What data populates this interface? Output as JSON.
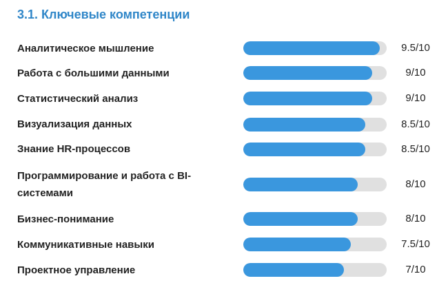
{
  "section": {
    "title": "3.1. Ключевые компетенции"
  },
  "colors": {
    "title": "#2f86c8",
    "bar_fill": "#3a97de",
    "bar_track": "#e0e0e0"
  },
  "skills": [
    {
      "label": "Аналитическое мышление",
      "score_text": "9.5/10",
      "value": 9.5,
      "max": 10
    },
    {
      "label": "Работа с большими данными",
      "score_text": "9/10",
      "value": 9,
      "max": 10
    },
    {
      "label": "Статистический анализ",
      "score_text": "9/10",
      "value": 9,
      "max": 10
    },
    {
      "label": "Визуализация данных",
      "score_text": "8.5/10",
      "value": 8.5,
      "max": 10
    },
    {
      "label": "Знание HR-процессов",
      "score_text": "8.5/10",
      "value": 8.5,
      "max": 10
    },
    {
      "label": "Программирование и работа с BI-системами",
      "score_text": "8/10",
      "value": 8,
      "max": 10
    },
    {
      "label": "Бизнес-понимание",
      "score_text": "8/10",
      "value": 8,
      "max": 10
    },
    {
      "label": "Коммуникативные навыки",
      "score_text": "7.5/10",
      "value": 7.5,
      "max": 10
    },
    {
      "label": "Проектное управление",
      "score_text": "7/10",
      "value": 7,
      "max": 10
    }
  ]
}
